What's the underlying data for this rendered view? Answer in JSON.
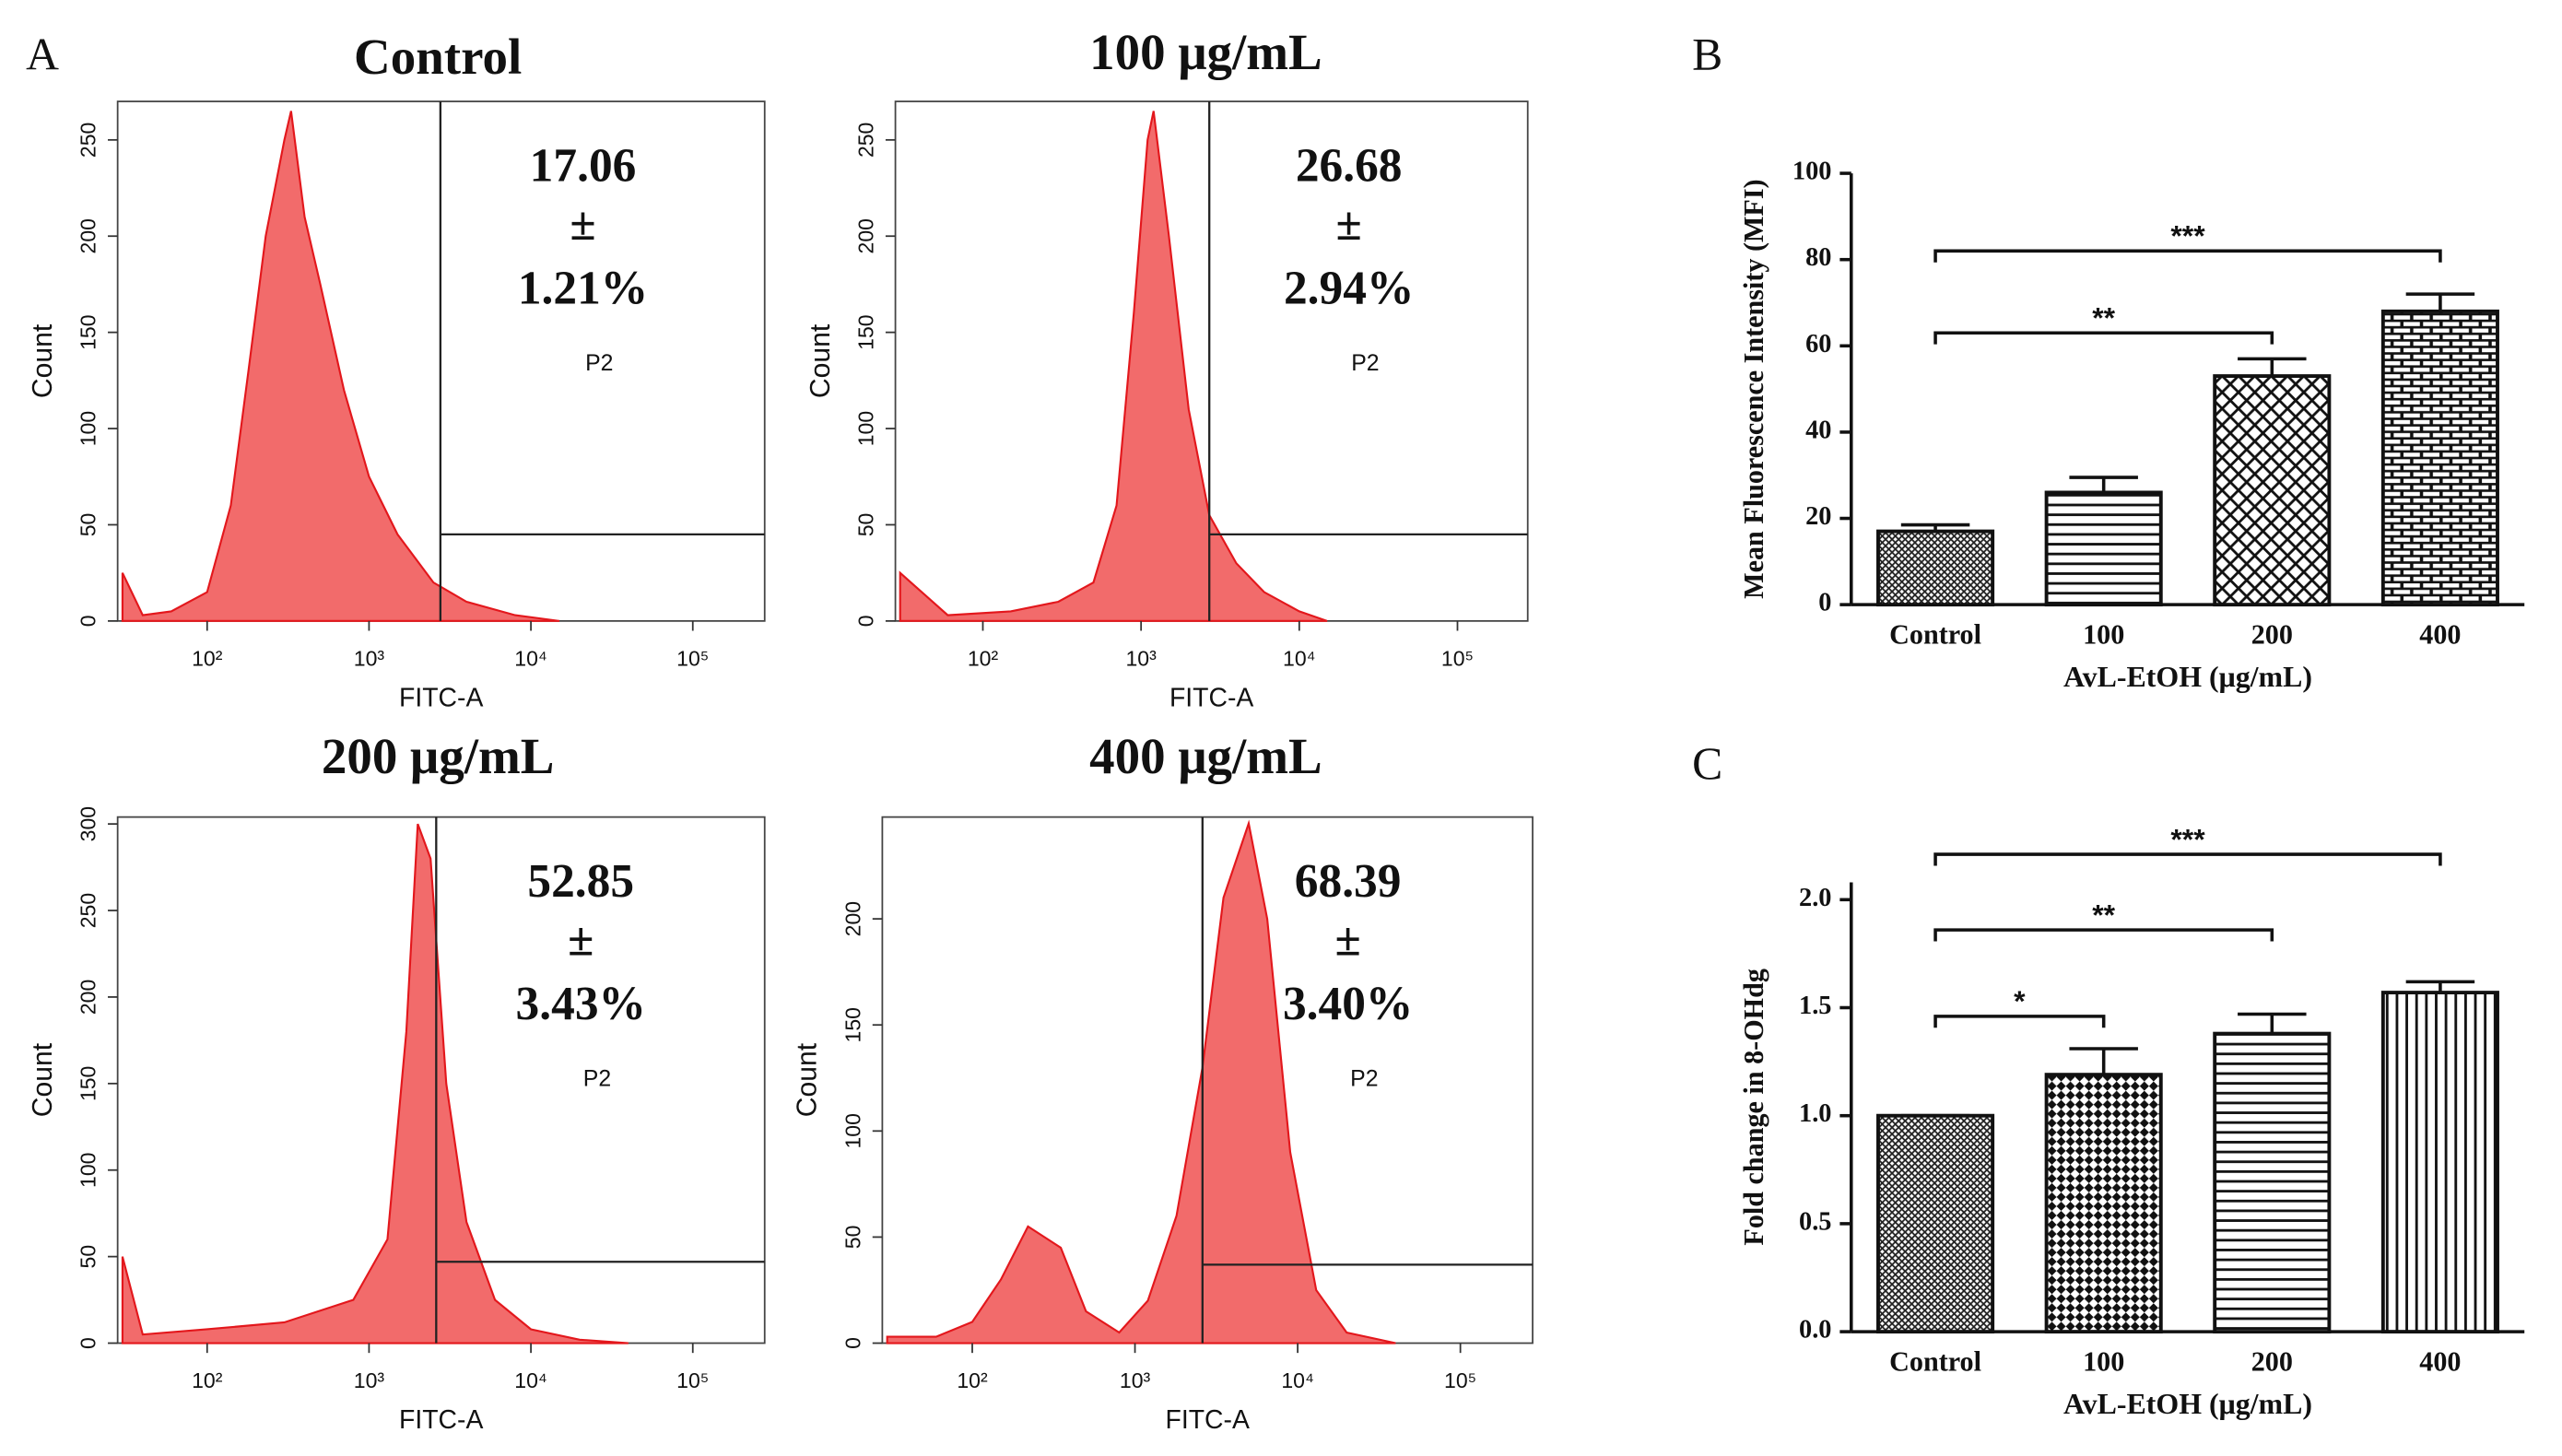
{
  "chart_data": [
    {
      "type": "area",
      "panel_label": "A",
      "title": "Control",
      "annotation": [
        "17.06",
        "±",
        "1.21%"
      ],
      "gate_label": "P2",
      "x_label": "FITC-A",
      "y_label": "Count",
      "color": "#f26b6b",
      "line_color": "#e3171c",
      "log_x": true,
      "x": [
        30,
        40,
        60,
        100,
        140,
        180,
        230,
        300,
        330,
        400,
        500,
        700,
        1000,
        1500,
        2500,
        4000,
        8000,
        15000
      ],
      "values": [
        25,
        3,
        5,
        15,
        60,
        130,
        200,
        250,
        265,
        210,
        175,
        120,
        75,
        45,
        20,
        10,
        3,
        0
      ],
      "gate_x": 2760,
      "gate_y": 45,
      "xlim": [
        28,
        278000
      ],
      "ylim": [
        0,
        270
      ],
      "xticks": [
        {
          "value": 100,
          "label": "10²"
        },
        {
          "value": 1000,
          "label": "10³"
        },
        {
          "value": 10000,
          "label": "10⁴"
        },
        {
          "value": 100000,
          "label": "10⁵"
        }
      ],
      "yticks": [
        0,
        50,
        100,
        150,
        200,
        250
      ]
    },
    {
      "type": "area",
      "title": "100 μg/mL",
      "annotation": [
        "26.68",
        "±",
        "2.94%"
      ],
      "gate_label": "P2",
      "x_label": "FITC-A",
      "y_label": "Count",
      "color": "#f26b6b",
      "line_color": "#e3171c",
      "log_x": true,
      "x": [
        30,
        60,
        150,
        300,
        500,
        700,
        900,
        1100,
        1200,
        1500,
        2000,
        2700,
        4000,
        6000,
        10000,
        15000
      ],
      "values": [
        25,
        3,
        5,
        10,
        20,
        60,
        160,
        250,
        265,
        200,
        110,
        55,
        30,
        15,
        5,
        0
      ],
      "gate_x": 2700,
      "gate_y": 45,
      "xlim": [
        28,
        278000
      ],
      "ylim": [
        0,
        270
      ],
      "xticks": [
        {
          "value": 100,
          "label": "10²"
        },
        {
          "value": 1000,
          "label": "10³"
        },
        {
          "value": 10000,
          "label": "10⁴"
        },
        {
          "value": 100000,
          "label": "10⁵"
        }
      ],
      "yticks": [
        0,
        50,
        100,
        150,
        200,
        250
      ]
    },
    {
      "type": "area",
      "title": "200 μg/mL",
      "annotation": [
        "52.85",
        "±",
        "3.43%"
      ],
      "gate_label": "P2",
      "x_label": "FITC-A",
      "y_label": "Count",
      "color": "#f26b6b",
      "line_color": "#e3171c",
      "log_x": true,
      "x": [
        30,
        40,
        100,
        300,
        800,
        1300,
        1700,
        2000,
        2400,
        3000,
        4000,
        6000,
        10000,
        20000,
        40000
      ],
      "values": [
        50,
        5,
        8,
        12,
        25,
        60,
        180,
        300,
        280,
        150,
        70,
        25,
        8,
        2,
        0
      ],
      "gate_x": 2600,
      "gate_y": 47,
      "xlim": [
        28,
        278000
      ],
      "ylim": [
        0,
        304
      ],
      "xticks": [
        {
          "value": 100,
          "label": "10²"
        },
        {
          "value": 1000,
          "label": "10³"
        },
        {
          "value": 10000,
          "label": "10⁴"
        },
        {
          "value": 100000,
          "label": "10⁵"
        }
      ],
      "yticks": [
        0,
        50,
        100,
        150,
        200,
        250,
        300
      ]
    },
    {
      "type": "area",
      "title": "400 μg/mL",
      "annotation": [
        "68.39",
        "±",
        "3.40%"
      ],
      "gate_label": "P2",
      "x_label": "FITC-A",
      "y_label": "Count",
      "color": "#f26b6b",
      "line_color": "#e3171c",
      "log_x": true,
      "x": [
        30,
        60,
        100,
        150,
        220,
        350,
        500,
        800,
        1200,
        1800,
        2600,
        3500,
        5000,
        6500,
        9000,
        13000,
        20000,
        40000
      ],
      "values": [
        3,
        3,
        10,
        30,
        55,
        45,
        15,
        5,
        20,
        60,
        130,
        210,
        245,
        200,
        90,
        25,
        5,
        0
      ],
      "gate_x": 2600,
      "gate_y": 37,
      "xlim": [
        28,
        278000
      ],
      "ylim": [
        0,
        248
      ],
      "xticks": [
        {
          "value": 100,
          "label": "10²"
        },
        {
          "value": 1000,
          "label": "10³"
        },
        {
          "value": 10000,
          "label": "10⁴"
        },
        {
          "value": 100000,
          "label": "10⁵"
        }
      ],
      "yticks": [
        0,
        50,
        100,
        150,
        200
      ]
    },
    {
      "type": "bar",
      "panel_label": "B",
      "y_label": "Mean Fluorescence Intensity (MFI)",
      "x_label": "AvL-EtOH (μg/mL)",
      "categories": [
        "Control",
        "100",
        "200",
        "400"
      ],
      "values": [
        17,
        26,
        53,
        68
      ],
      "errors": [
        1.5,
        3.5,
        4,
        4
      ],
      "patterns": [
        "dense",
        "horizontal",
        "cross",
        "brick"
      ],
      "ylim": [
        0,
        100
      ],
      "yticks": [
        0,
        20,
        40,
        60,
        80,
        100
      ],
      "significance": [
        {
          "from": 0,
          "to": 3,
          "label": "***",
          "y": 82
        },
        {
          "from": 0,
          "to": 2,
          "label": "**",
          "y": 63
        }
      ]
    },
    {
      "type": "bar",
      "panel_label": "C",
      "y_label": "Fold change in 8-OHdg",
      "x_label": "AvL-EtOH (μg/mL)",
      "categories": [
        "Control",
        "100",
        "200",
        "400"
      ],
      "values": [
        1.0,
        1.19,
        1.38,
        1.57
      ],
      "errors": [
        0,
        0.12,
        0.09,
        0.05
      ],
      "patterns": [
        "dense",
        "checker",
        "horizontal",
        "vertical"
      ],
      "ylim": [
        0,
        2.08
      ],
      "yticks": [
        {
          "value": 0,
          "label": "0.0"
        },
        0.5,
        {
          "value": 1,
          "label": "1.0"
        },
        1.5,
        {
          "value": 2,
          "label": "2.0"
        }
      ],
      "significance": [
        {
          "from": 0,
          "to": 3,
          "label": "***",
          "y": 2.21
        },
        {
          "from": 0,
          "to": 2,
          "label": "**",
          "y": 1.86
        },
        {
          "from": 0,
          "to": 1,
          "label": "*",
          "y": 1.46
        }
      ]
    }
  ]
}
